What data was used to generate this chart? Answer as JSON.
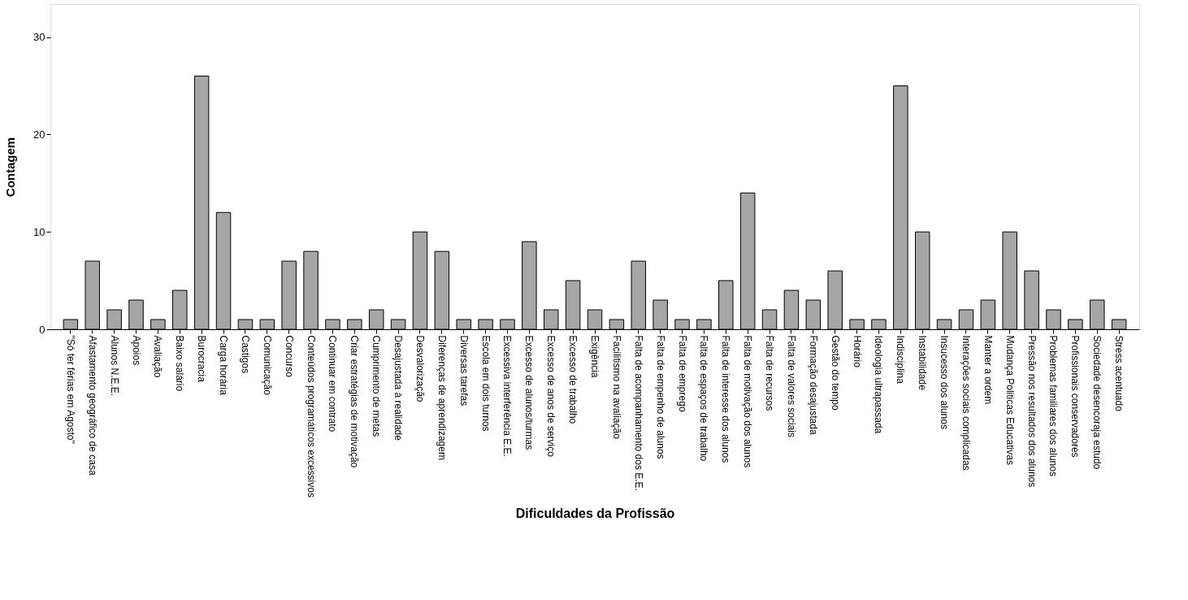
{
  "chart_data": {
    "type": "bar",
    "xlabel": "Dificuldades da Profissão",
    "ylabel": "Contagem",
    "color": "#a6a6a6",
    "ylim": [
      0,
      33.4
    ],
    "yticks": [
      0,
      10,
      20,
      30
    ],
    "grid": false,
    "categories": [
      "\"Só ter férias em Agosto\"",
      "Afastamento geográfico de casa",
      "Alunos N.E.E.",
      "Apoios",
      "Avaliação",
      "Baixo salário",
      "Burocracia",
      "Carga horária",
      "Castigos",
      "Comunicação",
      "Concurso",
      "Conteúdos programáticos excessivos",
      "Continuar em contrato",
      "Criar estratégias de motivação",
      "Cumprimento de metas",
      "Desajustada à realidade",
      "Desvalorização",
      "Diferenças de aprendizagem",
      "Diversas tarefas",
      "Escola em dois turnos",
      "Excessiva interferência E.E.",
      "Excesso de alunos/turmas",
      "Excesso de anos de serviço",
      "Excesso de trabalho",
      "Exigência",
      "Facilitismo na avaliação",
      "Falta de acompanhamento dos E.E.",
      "Falta de empenho de alunos",
      "Falta de emprego",
      "Falta de espaços de trabalho",
      "Falta de interesse dos alunos",
      "Falta de motivação dos alunos",
      "Falta de recursos",
      "Falta de valores sociais",
      "Formação desajustada",
      "Gestão do tempo",
      "Horário",
      "Ideologia ultrapassada",
      "Indisciplina",
      "Instabilidade",
      "Insucesso dos alunos",
      "Interações sociais complicadas",
      "Manter a ordem",
      "Mudança Politicas Educativas",
      "Pressão nos resultados dos alunos",
      "Problemas familiares dos alunos",
      "Profissionais conservadores",
      "Sociedade desencoraja estudo",
      "Stress acentuado"
    ],
    "values": [
      1,
      7,
      2,
      3,
      1,
      4,
      26,
      12,
      1,
      1,
      7,
      8,
      1,
      1,
      2,
      1,
      10,
      8,
      1,
      1,
      1,
      9,
      2,
      5,
      2,
      1,
      7,
      3,
      1,
      1,
      5,
      14,
      2,
      4,
      3,
      6,
      1,
      1,
      25,
      10,
      1,
      2,
      3,
      10,
      6,
      2,
      1,
      3,
      1
    ]
  }
}
